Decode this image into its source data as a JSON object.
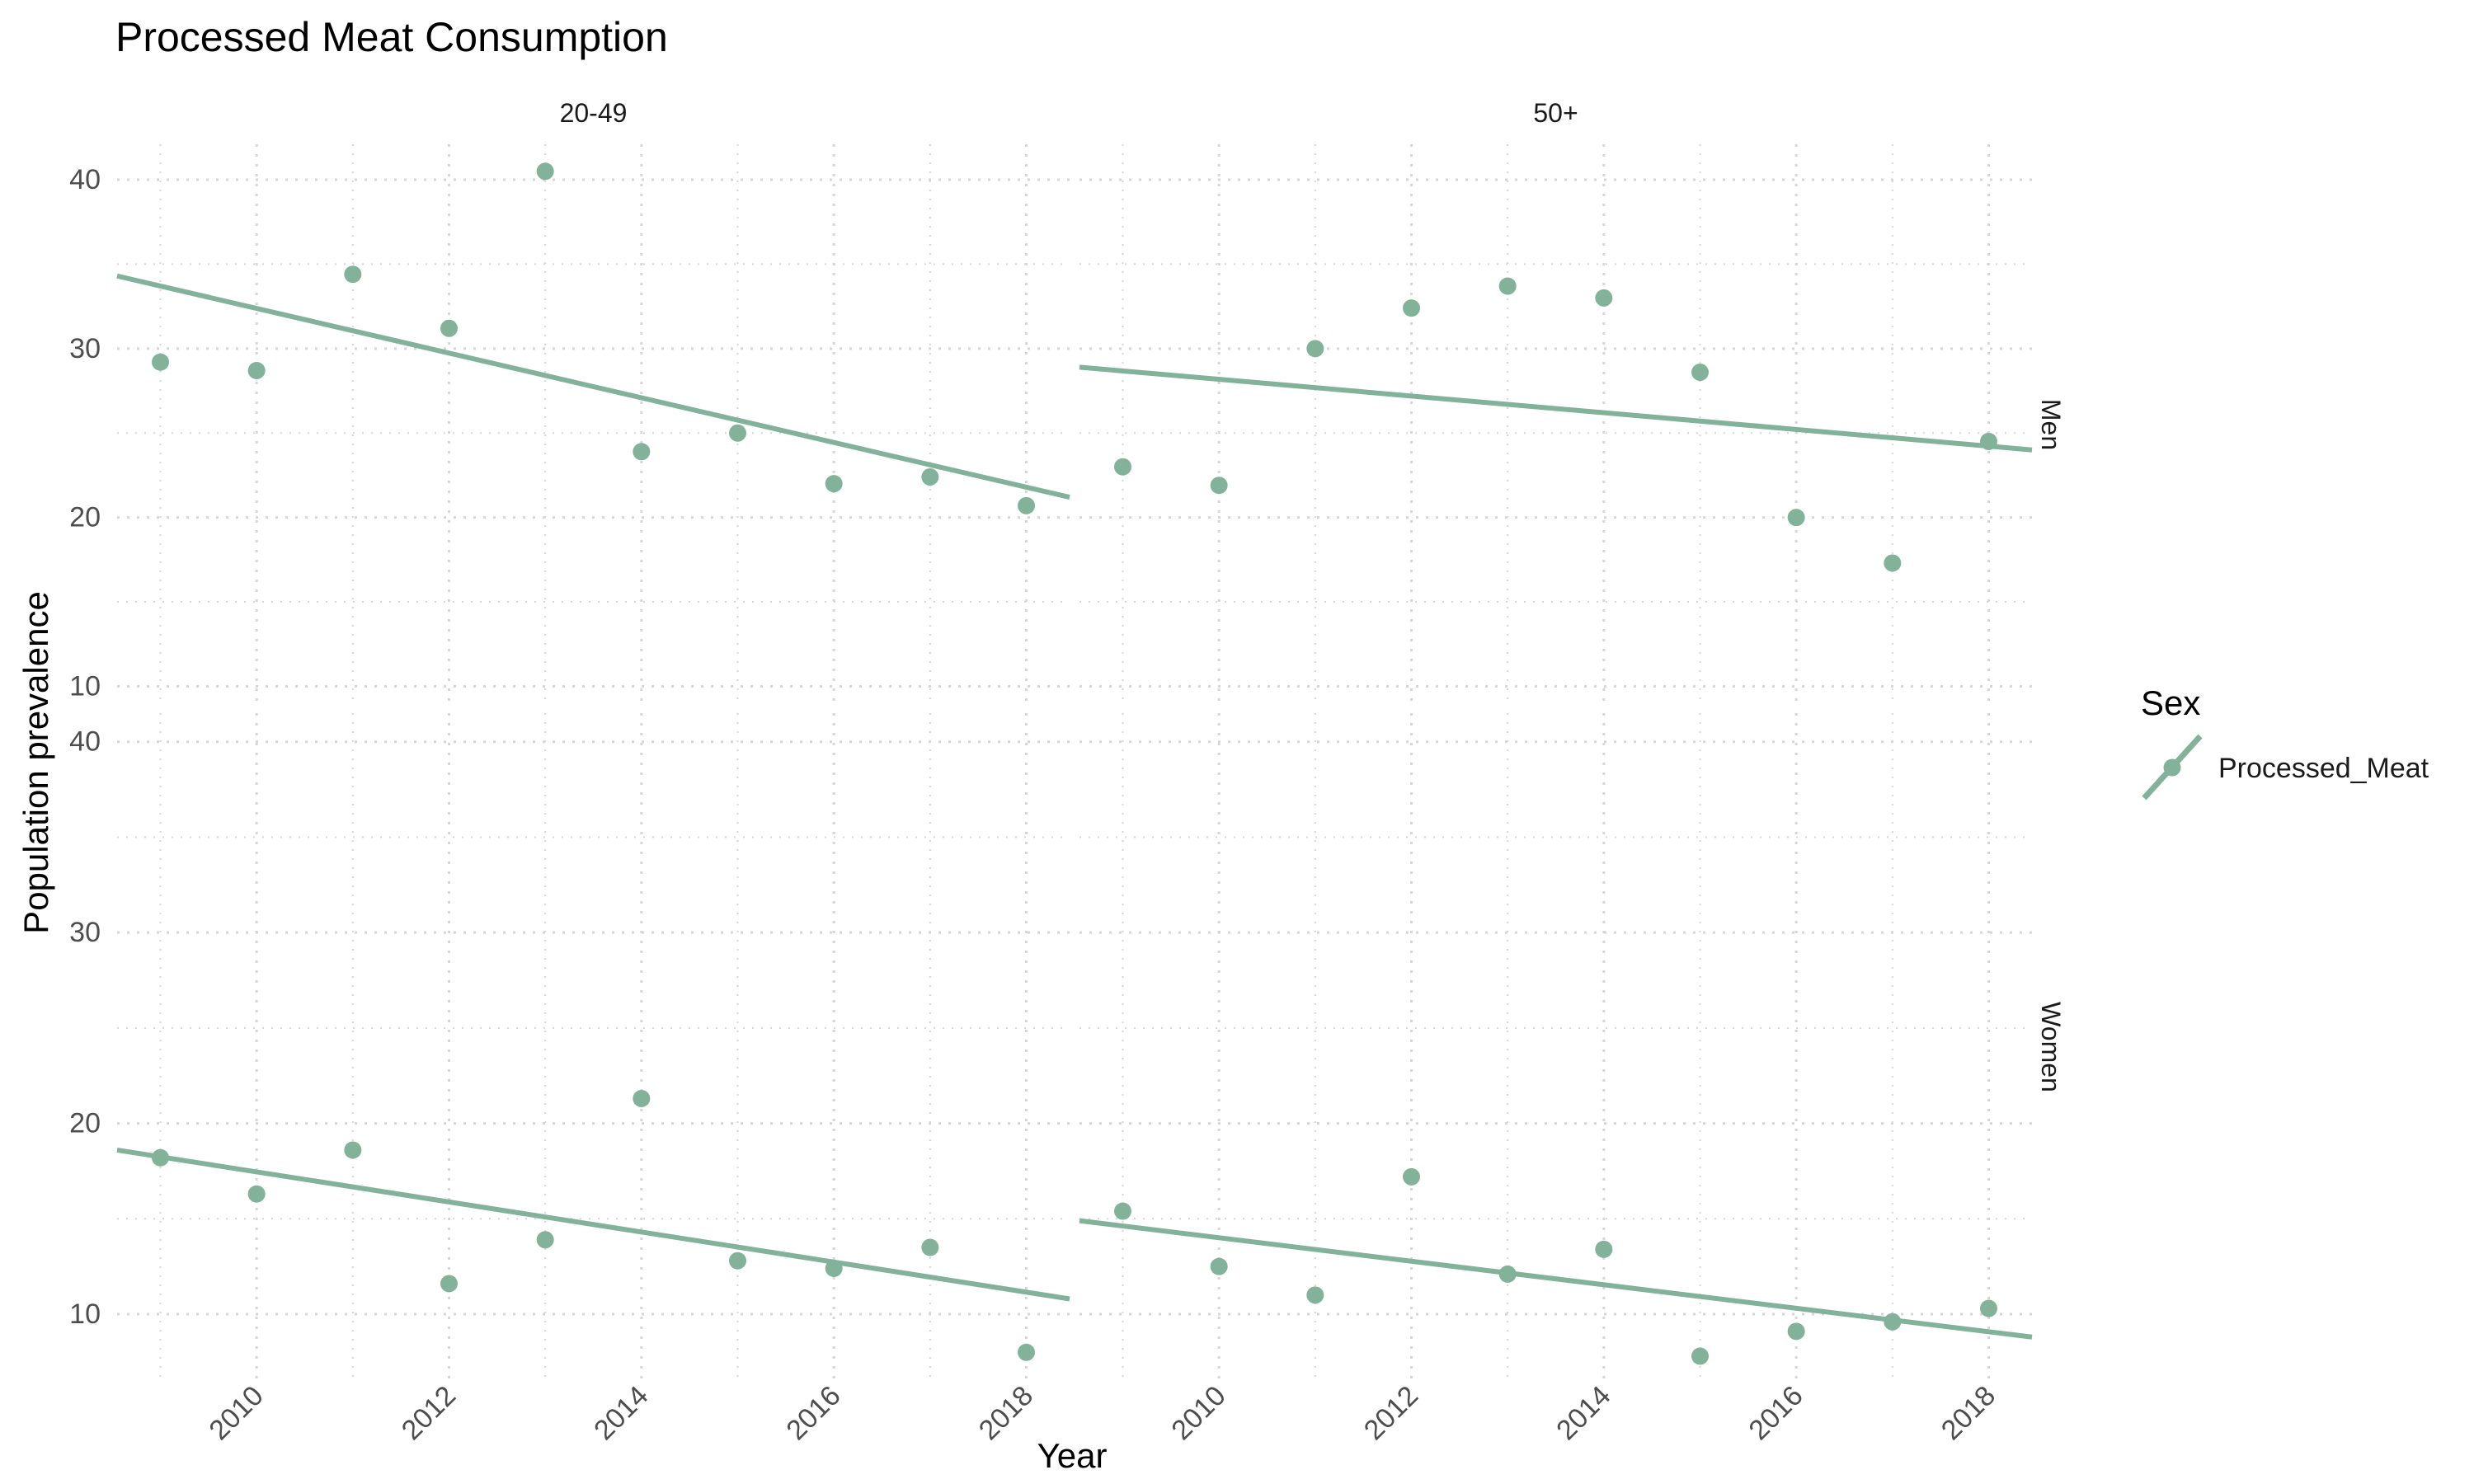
{
  "chart_data": {
    "type": "scatter",
    "title": "Processed Meat Consumption",
    "xlabel": "Year",
    "ylabel": "Population prevalence",
    "legend": {
      "title": "Sex",
      "placement": "right",
      "entries": [
        "Processed_Meat"
      ]
    },
    "color": "#82b29a",
    "grid": "dotted",
    "xlim": [
      2008.55,
      2018.45
    ],
    "x_ticks": [
      2010,
      2012,
      2014,
      2016,
      2018
    ],
    "x_tick_labels": [
      "2010",
      "2012",
      "2014",
      "2016",
      "2018"
    ],
    "columns": [
      "20-49",
      "50+"
    ],
    "rows": [
      {
        "label": "Men",
        "ylim": [
          8.9,
          42.1
        ],
        "y_ticks": [
          10,
          20,
          30,
          40
        ],
        "y_tick_labels": [
          "10",
          "20",
          "30",
          "40"
        ]
      },
      {
        "label": "Women",
        "ylim": [
          6.5,
          41.5
        ],
        "y_ticks": [
          10,
          20,
          30,
          40
        ],
        "y_tick_labels": [
          "10",
          "20",
          "30",
          "40"
        ]
      }
    ],
    "panels": [
      {
        "row": "Men",
        "column": "20-49",
        "x": [
          2009,
          2010,
          2011,
          2012,
          2013,
          2014,
          2015,
          2016,
          2017,
          2018
        ],
        "y": [
          29.2,
          28.7,
          34.4,
          31.2,
          40.5,
          23.9,
          25.0,
          22.0,
          22.4,
          20.7
        ],
        "trend": {
          "start": [
            2008.55,
            34.3
          ],
          "end": [
            2018.45,
            21.2
          ]
        }
      },
      {
        "row": "Men",
        "column": "50+",
        "x": [
          2009,
          2010,
          2011,
          2012,
          2013,
          2014,
          2015,
          2016,
          2017,
          2018
        ],
        "y": [
          23.0,
          21.9,
          30.0,
          32.4,
          33.7,
          33.0,
          28.6,
          20.0,
          17.3,
          24.5
        ],
        "trend": {
          "start": [
            2008.55,
            28.9
          ],
          "end": [
            2018.45,
            24.0
          ]
        }
      },
      {
        "row": "Women",
        "column": "20-49",
        "x": [
          2009,
          2010,
          2011,
          2012,
          2013,
          2014,
          2015,
          2016,
          2017,
          2018
        ],
        "y": [
          18.2,
          16.3,
          18.6,
          11.6,
          13.9,
          21.3,
          12.8,
          12.4,
          13.5,
          8.0
        ],
        "trend": {
          "start": [
            2008.55,
            18.6
          ],
          "end": [
            2018.45,
            10.8
          ]
        }
      },
      {
        "row": "Women",
        "column": "50+",
        "x": [
          2009,
          2010,
          2011,
          2012,
          2013,
          2014,
          2015,
          2016,
          2017,
          2018
        ],
        "y": [
          15.4,
          12.5,
          11.0,
          17.2,
          12.1,
          13.4,
          7.8,
          9.1,
          9.6,
          10.3
        ],
        "trend": {
          "start": [
            2008.55,
            14.9
          ],
          "end": [
            2018.45,
            8.8
          ]
        }
      }
    ]
  }
}
